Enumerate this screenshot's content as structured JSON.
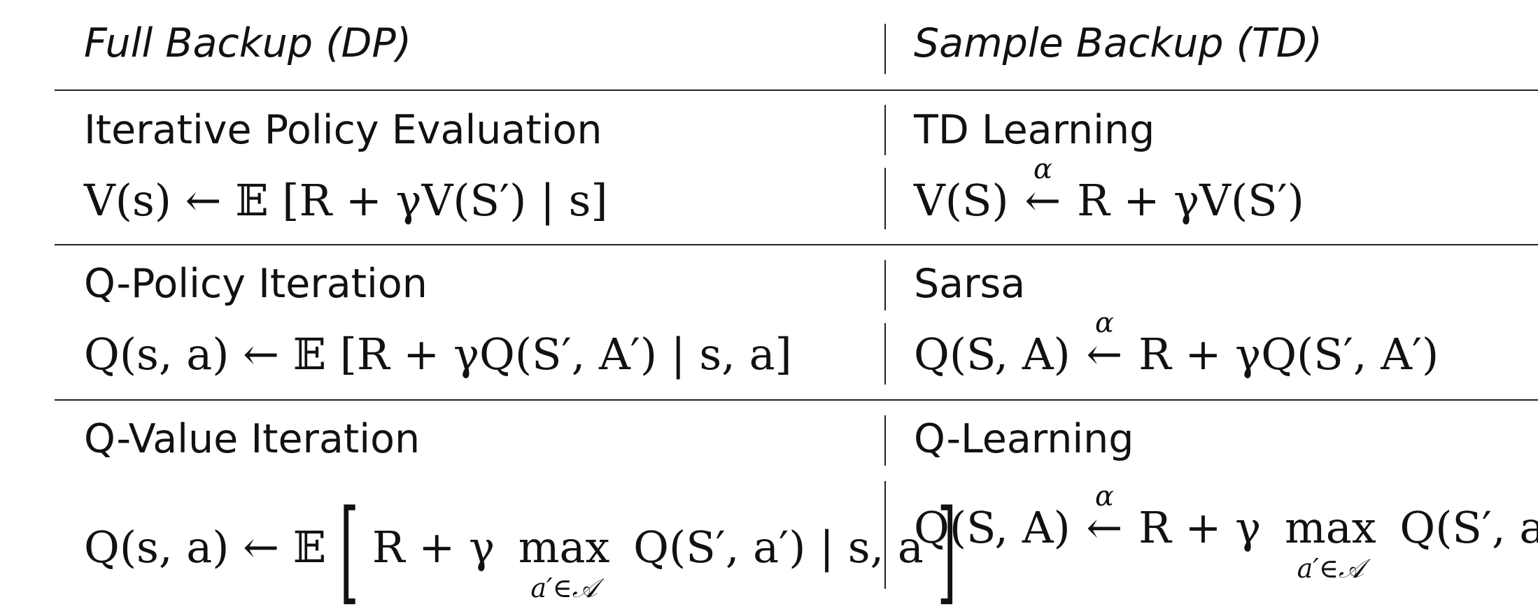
{
  "header": {
    "left": "Full Backup (DP)",
    "right": "Sample Backup (TD)"
  },
  "rows": [
    {
      "left_title": "Iterative Policy Evaluation",
      "left_formula": "V(s) ← 𝔼 [R + γV(S′) | s]",
      "right_title": "TD Learning",
      "right_formula_lhs": "V(S)",
      "right_formula_rhs": "R + γV(S′)"
    },
    {
      "left_title": "Q-Policy Iteration",
      "left_formula": "Q(s, a) ← 𝔼 [R + γQ(S′, A′) | s, a]",
      "right_title": "Sarsa",
      "right_formula_lhs": "Q(S, A)",
      "right_formula_rhs": "R + γQ(S′, A′)"
    },
    {
      "left_title": "Q-Value Iteration",
      "left_formula_lhs": "Q(s, a) ← 𝔼",
      "left_formula_inner_pre": "R + γ",
      "left_formula_inner_post": "Q(S′, a′) | s, a",
      "right_title": "Q-Learning",
      "right_formula_lhs": "Q(S, A)",
      "right_formula_pre": "R + γ",
      "right_formula_post": "Q(S′, a′)"
    }
  ],
  "symbols": {
    "alpha": "α",
    "arrow": "←",
    "max": "max",
    "max_sub": "a′∈𝒜",
    "left_bracket": "[",
    "right_bracket": "]"
  }
}
